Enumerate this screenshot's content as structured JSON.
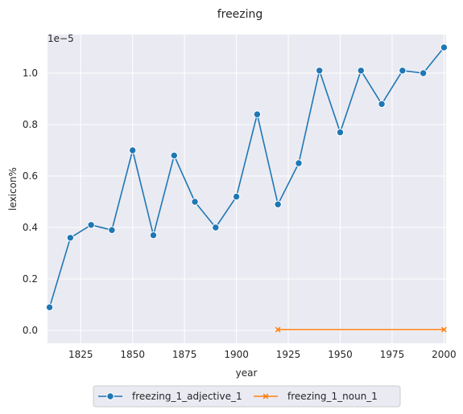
{
  "chart_data": {
    "type": "line",
    "title": "freezing",
    "xlabel": "year",
    "ylabel": "lexicon%",
    "y_offset_label": "1e−5",
    "xlim": [
      1809,
      2001
    ],
    "ylim": [
      -0.05,
      1.15
    ],
    "x_ticks": [
      1825,
      1850,
      1875,
      1900,
      1925,
      1950,
      1975,
      2000
    ],
    "x_tick_labels": [
      "1825",
      "1850",
      "1875",
      "1900",
      "1925",
      "1950",
      "1975",
      "2000"
    ],
    "y_ticks": [
      0.0,
      0.2,
      0.4,
      0.6,
      0.8,
      1.0
    ],
    "y_tick_labels": [
      "0.0",
      "0.2",
      "0.4",
      "0.6",
      "0.8",
      "1.0"
    ],
    "grid": true,
    "legend_position": "bottom-center",
    "series": [
      {
        "name": "freezing_1_adjective_1",
        "color": "#1f77b4",
        "marker": "circle",
        "x": [
          1810,
          1820,
          1830,
          1840,
          1850,
          1860,
          1870,
          1880,
          1890,
          1900,
          1910,
          1920,
          1930,
          1940,
          1950,
          1960,
          1970,
          1980,
          1990,
          2000
        ],
        "values": [
          0.09,
          0.36,
          0.41,
          0.39,
          0.7,
          0.37,
          0.68,
          0.5,
          0.4,
          0.52,
          0.84,
          0.49,
          0.65,
          1.01,
          0.77,
          1.01,
          0.88,
          1.01,
          1.0,
          1.1
        ]
      },
      {
        "name": "freezing_1_noun_1",
        "color": "#ff7f0e",
        "marker": "x",
        "x": [
          1920,
          2000
        ],
        "values": [
          0.003,
          0.003
        ]
      }
    ]
  }
}
